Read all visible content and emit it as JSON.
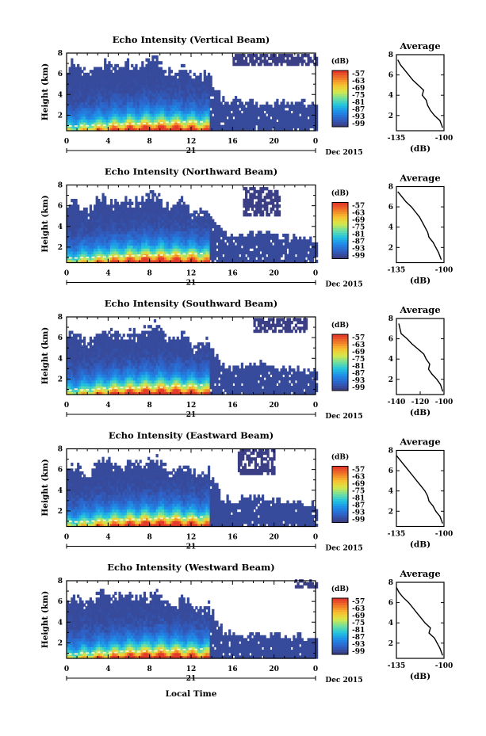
{
  "figure": {
    "x_axis_label": "Local Time",
    "date_label": "21",
    "month_label": "Dec 2015"
  },
  "colorbar": {
    "unit_label": "(dB)",
    "tick_labels": [
      "-57",
      "-63",
      "-69",
      "-75",
      "-81",
      "-87",
      "-93",
      "-99"
    ],
    "colors": [
      "#3b3f86",
      "#2e62c8",
      "#1f8ae8",
      "#22c3e0",
      "#6ee0a0",
      "#d8e84a",
      "#f7c130",
      "#f07a28",
      "#e33a2a"
    ]
  },
  "profile_panels": {
    "title": "Average",
    "xlabel": "(dB)"
  },
  "chart_data": [
    {
      "type": "heatmap",
      "title": "Echo Intensity (Vertical Beam)",
      "ylabel": "Height (km)",
      "x_ticks": [
        "0",
        "4",
        "8",
        "12",
        "16",
        "20",
        "0"
      ],
      "y_ticks": [
        "2",
        "4",
        "6",
        "8"
      ],
      "xlim": [
        0,
        24
      ],
      "ylim": [
        0.5,
        8
      ],
      "cbar_range": [
        -99,
        -57
      ],
      "echo_top_km": [
        6.7,
        6.4,
        6.6,
        7.2,
        6.5,
        7.4,
        6.8,
        6.3,
        6.0,
        5.7,
        3.3,
        3.2,
        3.1,
        3.0,
        3.1,
        3.2,
        3.0
      ],
      "aloft_layer": {
        "x": [
          16,
          24
        ],
        "y": [
          6.8,
          7.9
        ]
      },
      "profile": {
        "title": "Average",
        "xlabel": "(dB)",
        "x_ticks": [
          "-135",
          "-100"
        ],
        "y_ticks": [
          "2",
          "4",
          "6",
          "8"
        ],
        "xlim": [
          -135,
          -100
        ],
        "ylim": [
          0.5,
          8
        ],
        "height_km": [
          0.8,
          1.5,
          2.0,
          2.5,
          3.0,
          3.5,
          4.0,
          4.5,
          5.0,
          5.5,
          6.0,
          6.5,
          7.0,
          7.5
        ],
        "value_db": [
          -101,
          -103,
          -107,
          -110,
          -112,
          -113,
          -116,
          -115,
          -119,
          -123,
          -126,
          -129,
          -132,
          -134
        ]
      }
    },
    {
      "type": "heatmap",
      "title": "Echo Intensity (Northward Beam)",
      "ylabel": "Height (km)",
      "x_ticks": [
        "0",
        "4",
        "8",
        "12",
        "16",
        "20",
        "0"
      ],
      "y_ticks": [
        "2",
        "4",
        "6",
        "8"
      ],
      "xlim": [
        0,
        24
      ],
      "ylim": [
        0.5,
        8
      ],
      "cbar_range": [
        -99,
        -57
      ],
      "echo_top_km": [
        6.0,
        5.6,
        6.4,
        6.8,
        6.2,
        7.0,
        6.5,
        6.1,
        5.8,
        5.5,
        3.2,
        3.0,
        3.3,
        3.1,
        2.9,
        2.7,
        2.5
      ],
      "aloft_layer": {
        "x": [
          17,
          20.5
        ],
        "y": [
          5.0,
          7.8
        ]
      },
      "profile": {
        "title": "Average",
        "xlabel": "(dB)",
        "x_ticks": [
          "-135",
          "-100"
        ],
        "y_ticks": [
          "2",
          "4",
          "6",
          "8"
        ],
        "xlim": [
          -135,
          -100
        ],
        "ylim": [
          0.5,
          8
        ],
        "height_km": [
          0.8,
          1.5,
          2.0,
          2.5,
          3.0,
          3.5,
          4.0,
          4.5,
          5.0,
          5.5,
          6.0,
          6.5,
          7.0,
          7.5
        ],
        "value_db": [
          -102,
          -104,
          -106,
          -108,
          -111,
          -112,
          -114,
          -116,
          -118,
          -121,
          -124,
          -128,
          -131,
          -134
        ]
      }
    },
    {
      "type": "heatmap",
      "title": "Echo Intensity (Southward Beam)",
      "ylabel": "Height (km)",
      "x_ticks": [
        "0",
        "4",
        "8",
        "12",
        "16",
        "20",
        "0"
      ],
      "y_ticks": [
        "2",
        "4",
        "6",
        "8"
      ],
      "xlim": [
        0,
        24
      ],
      "ylim": [
        0.5,
        8
      ],
      "cbar_range": [
        -99,
        -57
      ],
      "echo_top_km": [
        6.0,
        5.8,
        6.3,
        6.9,
        6.1,
        7.1,
        6.6,
        6.0,
        5.7,
        5.4,
        3.2,
        3.0,
        3.4,
        3.3,
        3.0,
        2.8,
        2.6
      ],
      "aloft_layer": {
        "x": [
          18,
          23
        ],
        "y": [
          6.5,
          7.9
        ]
      },
      "profile": {
        "title": "Average",
        "xlabel": "(dB)",
        "x_ticks": [
          "-140",
          "-120",
          "-100"
        ],
        "y_ticks": [
          "2",
          "4",
          "6",
          "8"
        ],
        "xlim": [
          -140,
          -100
        ],
        "ylim": [
          0.5,
          8
        ],
        "height_km": [
          0.8,
          1.5,
          2.0,
          2.5,
          3.0,
          3.5,
          4.0,
          4.5,
          5.0,
          5.5,
          6.0,
          6.5,
          7.0,
          7.5
        ],
        "value_db": [
          -101,
          -103,
          -106,
          -110,
          -113,
          -112,
          -115,
          -117,
          -122,
          -127,
          -131,
          -136,
          -137,
          -138
        ]
      }
    },
    {
      "type": "heatmap",
      "title": "Echo Intensity (Eastward Beam)",
      "ylabel": "Height (km)",
      "x_ticks": [
        "0",
        "4",
        "8",
        "12",
        "16",
        "20",
        "0"
      ],
      "y_ticks": [
        "2",
        "4",
        "6",
        "8"
      ],
      "xlim": [
        0,
        24
      ],
      "ylim": [
        0.5,
        8
      ],
      "cbar_range": [
        -99,
        -57
      ],
      "echo_top_km": [
        6.2,
        5.7,
        6.5,
        6.8,
        6.3,
        7.1,
        6.7,
        6.2,
        5.9,
        5.6,
        3.1,
        2.9,
        3.2,
        3.0,
        2.8,
        2.7,
        2.6
      ],
      "aloft_layer": {
        "x": [
          16.5,
          20
        ],
        "y": [
          5.5,
          7.8
        ]
      },
      "profile": {
        "title": "Average",
        "xlabel": "(dB)",
        "x_ticks": [
          "-135",
          "-100"
        ],
        "y_ticks": [
          "2",
          "4",
          "6",
          "8"
        ],
        "xlim": [
          -135,
          -100
        ],
        "ylim": [
          0.5,
          8
        ],
        "height_km": [
          0.8,
          1.5,
          2.0,
          2.5,
          3.0,
          3.5,
          4.0,
          4.5,
          5.0,
          5.5,
          6.0,
          6.5,
          7.0,
          7.5
        ],
        "value_db": [
          -101,
          -103,
          -106,
          -108,
          -111,
          -112,
          -114,
          -117,
          -120,
          -123,
          -126,
          -129,
          -132,
          -135
        ]
      }
    },
    {
      "type": "heatmap",
      "title": "Echo Intensity (Westward Beam)",
      "ylabel": "Height (km)",
      "x_ticks": [
        "0",
        "4",
        "8",
        "12",
        "16",
        "20",
        "0"
      ],
      "y_ticks": [
        "2",
        "4",
        "6",
        "8"
      ],
      "xlim": [
        0,
        24
      ],
      "ylim": [
        0.5,
        8
      ],
      "cbar_range": [
        -99,
        -57
      ],
      "echo_top_km": [
        6.0,
        5.9,
        6.6,
        7.0,
        6.2,
        6.9,
        6.4,
        6.0,
        5.8,
        5.5,
        3.0,
        2.8,
        2.7,
        2.6,
        2.5,
        2.4,
        2.3
      ],
      "aloft_layer": {
        "x": [
          22,
          24
        ],
        "y": [
          7.3,
          7.9
        ]
      },
      "profile": {
        "title": "Average",
        "xlabel": "(dB)",
        "x_ticks": [
          "-135",
          "-100"
        ],
        "y_ticks": [
          "2",
          "4",
          "6",
          "8"
        ],
        "xlim": [
          -135,
          -100
        ],
        "ylim": [
          0.5,
          8
        ],
        "height_km": [
          0.8,
          1.5,
          2.0,
          2.5,
          3.0,
          3.5,
          4.0,
          4.5,
          5.0,
          5.5,
          6.0,
          6.5,
          7.0,
          7.5
        ],
        "value_db": [
          -101,
          -103,
          -105,
          -107,
          -111,
          -110,
          -114,
          -117,
          -120,
          -123,
          -126,
          -130,
          -133,
          -135
        ]
      }
    }
  ]
}
